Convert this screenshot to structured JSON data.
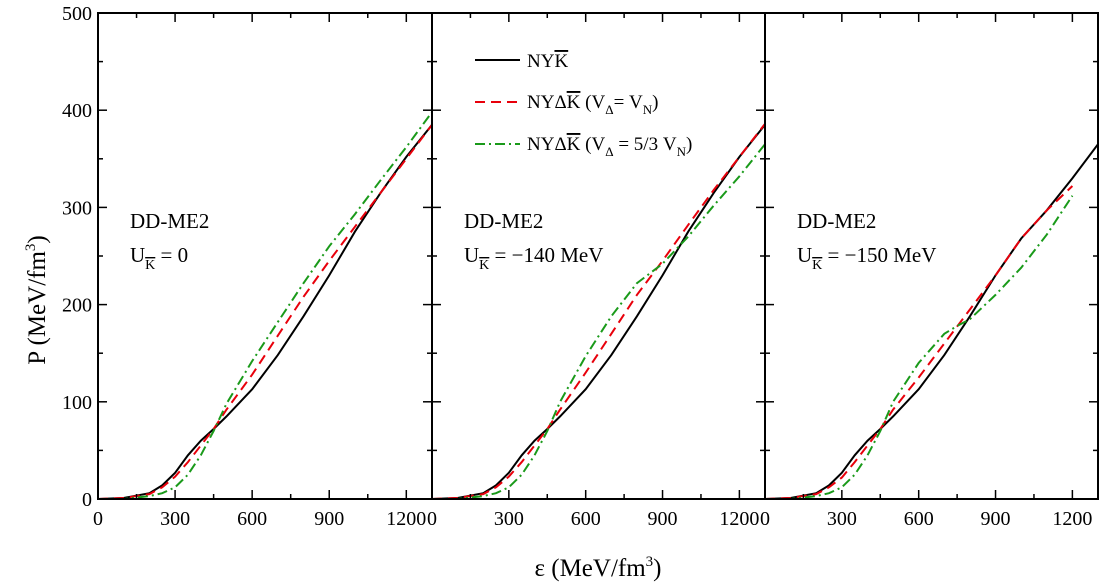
{
  "figure": {
    "ylabel_main": "P (MeV/fm",
    "ylabel_sup": "3",
    "ylabel_close": ")",
    "xlabel_main": "ε (MeV/fm",
    "xlabel_sup": "3",
    "xlabel_close": ")"
  },
  "legend": {
    "entries": [
      {
        "parts": [
          "NY",
          "K"
        ],
        "overbar": "K"
      },
      {
        "parts": [
          "NYΔ",
          "K",
          " (V",
          "Δ",
          "= V",
          "N",
          ")"
        ]
      },
      {
        "parts": [
          "NYΔ",
          "K",
          " (V",
          "Δ",
          " = 5/3 V",
          "N",
          ")"
        ]
      }
    ],
    "line1": "NY",
    "line1_k": "K",
    "line2_a": "NYΔ",
    "line2_k": "K",
    "line2_b": " (V",
    "line2_sub1": "Δ",
    "line2_c": "= V",
    "line2_sub2": "N",
    "line2_d": ")",
    "line3_a": "NYΔ",
    "line3_k": "K",
    "line3_b": " (V",
    "line3_sub1": "Δ",
    "line3_c": " = 5/3 V",
    "line3_sub2": "N",
    "line3_d": ")"
  },
  "panels": [
    {
      "model": "DD-ME2",
      "u_prefix": "U",
      "u_sub": "K",
      "u_value": " = 0"
    },
    {
      "model": "DD-ME2",
      "u_prefix": "U",
      "u_sub": "K",
      "u_value": " = −140 MeV"
    },
    {
      "model": "DD-ME2",
      "u_prefix": "U",
      "u_sub": "K",
      "u_value": " = −150 MeV"
    }
  ],
  "colors": {
    "series_black": "#000000",
    "series_red": "#e8000b",
    "series_green": "#1a9a1a"
  },
  "chart_data": [
    {
      "type": "line",
      "panel_label": "DD-ME2, U_K = 0",
      "xlim": [
        0,
        1300
      ],
      "ylim": [
        0,
        500
      ],
      "xticks": [
        0,
        300,
        600,
        900,
        1200
      ],
      "yticks": [
        0,
        100,
        200,
        300,
        400,
        500
      ],
      "series": [
        {
          "name": "NYK",
          "style": "solid",
          "color": "#000000",
          "x": [
            0,
            100,
            200,
            250,
            300,
            350,
            400,
            450,
            500,
            600,
            700,
            800,
            900,
            1000,
            1100,
            1200,
            1300
          ],
          "y": [
            0,
            1,
            6,
            14,
            27,
            45,
            60,
            72,
            85,
            113,
            148,
            188,
            230,
            275,
            315,
            352,
            385
          ]
        },
        {
          "name": "NYΔK (VΔ= VN)",
          "style": "dashed",
          "color": "#e8000b",
          "x": [
            0,
            100,
            200,
            250,
            300,
            350,
            400,
            450,
            500,
            600,
            700,
            800,
            900,
            1000,
            1100,
            1200,
            1300
          ],
          "y": [
            0,
            1,
            5,
            12,
            23,
            38,
            55,
            72,
            92,
            128,
            168,
            208,
            245,
            280,
            315,
            350,
            385
          ]
        },
        {
          "name": "NYΔK (VΔ = 5/3 VN)",
          "style": "dashdot",
          "color": "#1a9a1a",
          "x": [
            0,
            100,
            200,
            250,
            300,
            350,
            400,
            450,
            500,
            600,
            700,
            800,
            900,
            1000,
            1100,
            1200,
            1300
          ],
          "y": [
            0,
            0,
            3,
            6,
            12,
            25,
            45,
            70,
            98,
            142,
            182,
            222,
            260,
            293,
            328,
            362,
            398
          ]
        }
      ]
    },
    {
      "type": "line",
      "panel_label": "DD-ME2, U_K = −140 MeV",
      "xlim": [
        0,
        1300
      ],
      "ylim": [
        0,
        500
      ],
      "xticks": [
        0,
        300,
        600,
        900,
        1200
      ],
      "yticks": [
        0,
        100,
        200,
        300,
        400,
        500
      ],
      "series": [
        {
          "name": "NYK",
          "style": "solid",
          "color": "#000000",
          "x": [
            0,
            100,
            200,
            250,
            300,
            350,
            400,
            450,
            500,
            600,
            700,
            800,
            900,
            1000,
            1100,
            1200,
            1300
          ],
          "y": [
            0,
            1,
            6,
            14,
            27,
            45,
            60,
            72,
            85,
            113,
            148,
            188,
            230,
            275,
            315,
            352,
            385
          ]
        },
        {
          "name": "NYΔK (VΔ= VN)",
          "style": "dashed",
          "color": "#e8000b",
          "x": [
            0,
            100,
            200,
            250,
            300,
            350,
            400,
            450,
            500,
            600,
            700,
            800,
            900,
            1000,
            1100,
            1200,
            1300
          ],
          "y": [
            0,
            1,
            5,
            12,
            23,
            38,
            55,
            72,
            92,
            130,
            170,
            210,
            245,
            282,
            318,
            352,
            386
          ]
        },
        {
          "name": "NYΔK (VΔ = 5/3 VN)",
          "style": "dashdot",
          "color": "#1a9a1a",
          "x": [
            0,
            100,
            200,
            250,
            300,
            350,
            400,
            450,
            500,
            600,
            700,
            800,
            900,
            1000,
            1100,
            1200,
            1300
          ],
          "y": [
            0,
            0,
            3,
            6,
            12,
            25,
            45,
            70,
            100,
            147,
            188,
            222,
            242,
            270,
            302,
            332,
            365
          ]
        }
      ]
    },
    {
      "type": "line",
      "panel_label": "DD-ME2, U_K = −150 MeV",
      "xlim": [
        0,
        1300
      ],
      "ylim": [
        0,
        500
      ],
      "xticks": [
        0,
        300,
        600,
        900,
        1200
      ],
      "yticks": [
        0,
        100,
        200,
        300,
        400,
        500
      ],
      "series": [
        {
          "name": "NYK",
          "style": "solid",
          "color": "#000000",
          "x": [
            0,
            100,
            200,
            250,
            300,
            350,
            400,
            450,
            500,
            600,
            700,
            800,
            900,
            1000,
            1100,
            1200,
            1300
          ],
          "y": [
            0,
            1,
            6,
            14,
            27,
            45,
            60,
            72,
            85,
            113,
            148,
            188,
            230,
            268,
            297,
            330,
            365
          ]
        },
        {
          "name": "NYΔK (VΔ= VN)",
          "style": "dashed",
          "color": "#e8000b",
          "x": [
            0,
            100,
            200,
            250,
            300,
            350,
            400,
            450,
            500,
            600,
            700,
            800,
            900,
            1000,
            1100,
            1200
          ],
          "y": [
            0,
            1,
            5,
            12,
            22,
            38,
            55,
            72,
            92,
            125,
            160,
            195,
            230,
            268,
            297,
            322
          ]
        },
        {
          "name": "NYΔK (VΔ = 5/3 VN)",
          "style": "dashdot",
          "color": "#1a9a1a",
          "x": [
            0,
            100,
            200,
            250,
            300,
            350,
            400,
            450,
            500,
            600,
            700,
            750,
            800,
            900,
            1000,
            1100,
            1200
          ],
          "y": [
            0,
            0,
            3,
            6,
            12,
            25,
            45,
            70,
            100,
            140,
            170,
            178,
            185,
            210,
            238,
            272,
            312
          ]
        }
      ]
    }
  ]
}
